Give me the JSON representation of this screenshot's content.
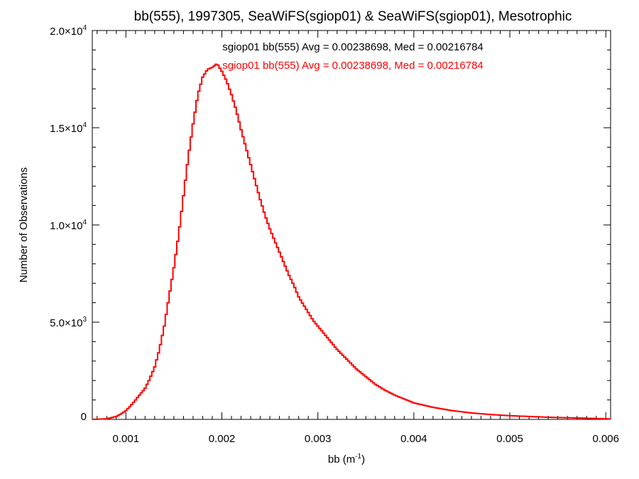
{
  "chart_data": {
    "type": "histogram-step",
    "title": "bb(555), 1997305, SeaWiFS(sgiop01) & SeaWiFS(sgiop01), Mesotrophic",
    "xlabel_main": "bb (m",
    "xlabel_sup": "-1",
    "xlabel_close": ")",
    "ylabel": "Number of Observations",
    "xlim": [
      0.00065,
      0.00605
    ],
    "ylim": [
      0,
      20000
    ],
    "x_ticks": [
      {
        "value": 0.001,
        "label": "0.001"
      },
      {
        "value": 0.002,
        "label": "0.002"
      },
      {
        "value": 0.003,
        "label": "0.003"
      },
      {
        "value": 0.004,
        "label": "0.004"
      },
      {
        "value": 0.005,
        "label": "0.005"
      },
      {
        "value": 0.006,
        "label": "0.006"
      }
    ],
    "y_ticks": [
      {
        "value": 0,
        "mant": "0",
        "exp": ""
      },
      {
        "value": 5000,
        "mant": "5.0×10",
        "exp": "3"
      },
      {
        "value": 10000,
        "mant": "1.0×10",
        "exp": "4"
      },
      {
        "value": 15000,
        "mant": "1.5×10",
        "exp": "4"
      },
      {
        "value": 20000,
        "mant": "2.0×10",
        "exp": "4"
      }
    ],
    "annotations": [
      {
        "text": "sgiop01 bb(555) Avg = 0.00238698, Med = 0.00216784",
        "color": "#000000"
      },
      {
        "text": "sgiop01 bb(555) Avg = 0.00238698, Med = 0.00216784",
        "color": "#ff0000"
      }
    ],
    "series": [
      {
        "color": "#ff0000",
        "points": [
          [
            0.00065,
            0
          ],
          [
            0.0008,
            30
          ],
          [
            0.0009,
            150
          ],
          [
            0.00095,
            280
          ],
          [
            0.001,
            450
          ],
          [
            0.00105,
            700
          ],
          [
            0.0011,
            1000
          ],
          [
            0.00115,
            1300
          ],
          [
            0.0012,
            1600
          ],
          [
            0.00125,
            2100
          ],
          [
            0.0013,
            2700
          ],
          [
            0.00135,
            3600
          ],
          [
            0.0014,
            4800
          ],
          [
            0.00145,
            6300
          ],
          [
            0.0015,
            7800
          ],
          [
            0.00155,
            9500
          ],
          [
            0.0016,
            11500
          ],
          [
            0.00165,
            13500
          ],
          [
            0.0017,
            15200
          ],
          [
            0.00175,
            16700
          ],
          [
            0.0018,
            17600
          ],
          [
            0.00185,
            18000
          ],
          [
            0.0019,
            18100
          ],
          [
            0.00195,
            18300
          ],
          [
            0.002,
            17900
          ],
          [
            0.00205,
            17400
          ],
          [
            0.0021,
            16700
          ],
          [
            0.00215,
            15900
          ],
          [
            0.0022,
            14900
          ],
          [
            0.00225,
            14000
          ],
          [
            0.0023,
            13100
          ],
          [
            0.00235,
            12200
          ],
          [
            0.0024,
            11300
          ],
          [
            0.00245,
            10500
          ],
          [
            0.0025,
            9800
          ],
          [
            0.00255,
            9200
          ],
          [
            0.0026,
            8600
          ],
          [
            0.00265,
            8000
          ],
          [
            0.0027,
            7400
          ],
          [
            0.00275,
            6900
          ],
          [
            0.0028,
            6300
          ],
          [
            0.00285,
            5900
          ],
          [
            0.0029,
            5500
          ],
          [
            0.00295,
            5100
          ],
          [
            0.003,
            4800
          ],
          [
            0.0031,
            4200
          ],
          [
            0.0032,
            3600
          ],
          [
            0.0033,
            3100
          ],
          [
            0.0034,
            2600
          ],
          [
            0.0035,
            2200
          ],
          [
            0.0036,
            1800
          ],
          [
            0.0037,
            1500
          ],
          [
            0.0038,
            1250
          ],
          [
            0.0039,
            1050
          ],
          [
            0.004,
            850
          ],
          [
            0.0042,
            620
          ],
          [
            0.0044,
            450
          ],
          [
            0.0046,
            330
          ],
          [
            0.0048,
            250
          ],
          [
            0.005,
            190
          ],
          [
            0.0052,
            150
          ],
          [
            0.0054,
            110
          ],
          [
            0.0056,
            85
          ],
          [
            0.0058,
            60
          ],
          [
            0.006,
            30
          ],
          [
            0.00605,
            20
          ]
        ]
      }
    ]
  }
}
